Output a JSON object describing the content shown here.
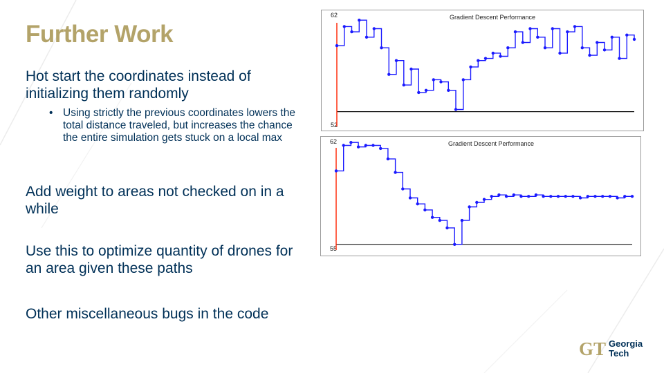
{
  "slide": {
    "title": "Further Work",
    "bullet1": "Hot start the coordinates instead of initializing them randomly",
    "bullet1_sub": "Using strictly the previous coordinates lowers the total distance traveled, but increases the chance the entire simulation gets stuck on a local max",
    "bullet2": "Add weight to areas not checked on in a while",
    "bullet3": "Use this to optimize quantity of drones for an area given these paths",
    "bullet4": "Other miscellaneous bugs in the code",
    "bullet_marker": "•"
  },
  "logo": {
    "line1": "Georgia",
    "line2": "Tech",
    "mark": "GT"
  },
  "colors": {
    "title": "#b3a369",
    "text": "#003057",
    "series": "#1a1aff",
    "start_line": "#ff2200",
    "logo_gold": "#b3a369"
  },
  "chart_data": [
    {
      "type": "line",
      "title": "Gradient Descent Performance",
      "ylim": [
        52,
        62
      ],
      "ytick_labels": [
        "62",
        "52"
      ],
      "y_baseline": 53,
      "x": [
        0,
        5,
        10,
        15,
        20,
        25,
        30,
        35,
        40,
        45,
        50,
        55,
        60,
        65,
        70,
        75,
        80,
        85,
        90,
        95,
        100,
        105,
        110,
        115,
        120,
        125,
        130,
        135,
        140,
        145,
        150,
        155,
        160,
        165,
        170,
        175,
        180,
        185,
        190,
        195,
        200
      ],
      "values": [
        59.2,
        61.0,
        60.5,
        61.6,
        60.0,
        60.8,
        59.0,
        56.5,
        57.8,
        55.5,
        57.0,
        54.8,
        55.0,
        56.0,
        55.8,
        55.0,
        53.2,
        56.0,
        57.2,
        57.8,
        58.0,
        58.5,
        58.2,
        59.0,
        60.5,
        59.5,
        60.8,
        60.0,
        59.0,
        60.8,
        58.5,
        60.5,
        61.0,
        59.0,
        58.3,
        59.5,
        58.8,
        60.0,
        58.0,
        60.2,
        59.8
      ]
    },
    {
      "type": "line",
      "title": "Gradient Descent Performance",
      "ylim": [
        55,
        62
      ],
      "ytick_labels": [
        "62",
        "55"
      ],
      "y_baseline": 55.1,
      "x": [
        0,
        5,
        10,
        15,
        20,
        25,
        30,
        35,
        40,
        45,
        50,
        55,
        60,
        65,
        70,
        75,
        80,
        85,
        90,
        95,
        100,
        105,
        110,
        115,
        120,
        125,
        130,
        135,
        140,
        145,
        150,
        155,
        160,
        165,
        170,
        175,
        180,
        185,
        190,
        195,
        200
      ],
      "values": [
        60.0,
        61.7,
        61.9,
        61.6,
        61.7,
        61.7,
        61.5,
        60.8,
        59.9,
        58.8,
        58.2,
        57.8,
        57.4,
        56.9,
        56.7,
        56.2,
        55.1,
        56.7,
        57.6,
        57.9,
        58.1,
        58.3,
        58.4,
        58.3,
        58.4,
        58.3,
        58.3,
        58.4,
        58.3,
        58.3,
        58.3,
        58.3,
        58.3,
        58.2,
        58.3,
        58.3,
        58.3,
        58.3,
        58.2,
        58.3,
        58.3
      ]
    }
  ]
}
